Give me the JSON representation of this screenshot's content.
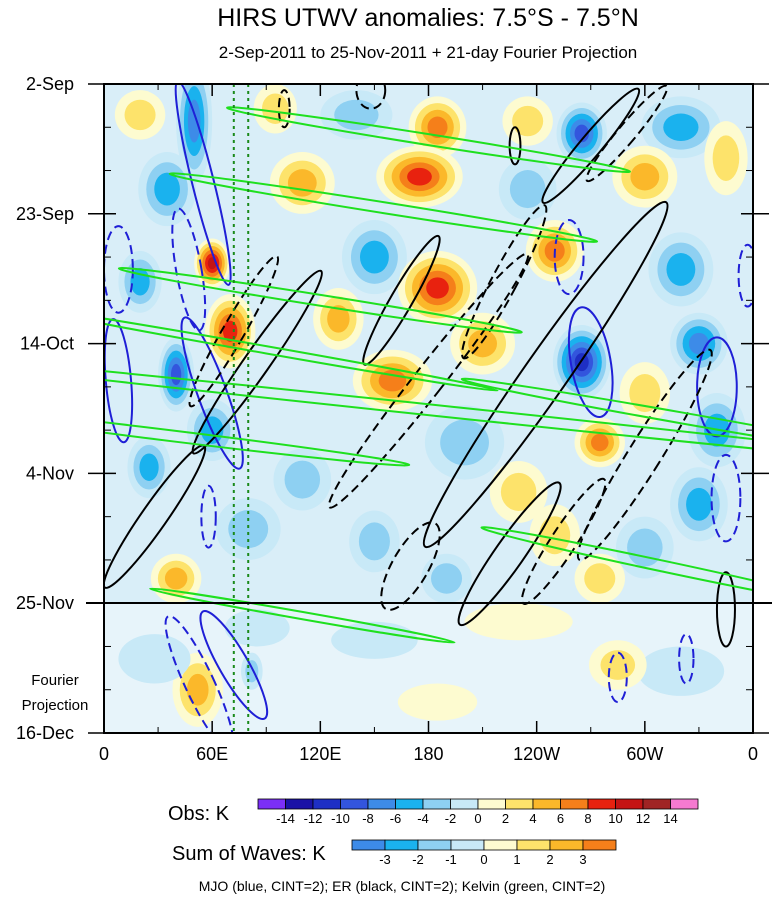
{
  "chart_data": {
    "type": "heatmap",
    "title": "HIRS UTWV anomalies: 7.5°S - 7.5°N",
    "subtitle": "2-Sep-2011 to 25-Nov-2011 + 21-day Fourier Projection",
    "x_ticks": [
      "0",
      "60E",
      "120E",
      "180",
      "120W",
      "60W",
      "0"
    ],
    "x_tick_values": [
      0,
      60,
      120,
      180,
      240,
      300,
      360
    ],
    "xlim": [
      0,
      360
    ],
    "y_ticks": [
      "2-Sep",
      "23-Sep",
      "14-Oct",
      "4-Nov",
      "25-Nov",
      "16-Dec"
    ],
    "y_tick_values": [
      0,
      21,
      42,
      63,
      84,
      105
    ],
    "ylim": [
      0,
      105
    ],
    "y_annotation": [
      "Fourier",
      "Projection"
    ],
    "projection_start_day": 84,
    "reference_lines_x": [
      72,
      80
    ],
    "obs_legend": {
      "label": "Obs: K",
      "levels": [
        "-14",
        "-12",
        "-10",
        "-8",
        "-6",
        "-4",
        "-2",
        "0",
        "2",
        "4",
        "6",
        "8",
        "10",
        "12",
        "14"
      ],
      "colors": [
        "#7b2ff7",
        "#1a12a6",
        "#1e2fc4",
        "#3355dd",
        "#3d8be8",
        "#1ab2ee",
        "#8ed0f2",
        "#c8e9f7",
        "#fdfbd0",
        "#fde36b",
        "#fbb82a",
        "#f57f1a",
        "#e8220f",
        "#c41414",
        "#a02424",
        "#f57ad0"
      ]
    },
    "waves_legend": {
      "label": "Sum of Waves: K",
      "levels": [
        "-3",
        "-2",
        "-1",
        "0",
        "1",
        "2",
        "3"
      ],
      "colors": [
        "#3d8be8",
        "#1ab2ee",
        "#8ed0f2",
        "#c8e9f7",
        "#fdfbd0",
        "#fde36b",
        "#fbb82a",
        "#f57f1a"
      ]
    },
    "footer": "MJO (blue, CINT=2); ER (black, CINT=2); Kelvin (green, CINT=2)",
    "series": [
      {
        "name": "MJO",
        "color": "#1f1fd6"
      },
      {
        "name": "ER",
        "color": "#000000"
      },
      {
        "name": "Kelvin",
        "color": "#1fe01f"
      }
    ],
    "obs_blobs": [
      {
        "lon": 20,
        "day": 5,
        "rx": 14,
        "ry": 4,
        "v": 4
      },
      {
        "lon": 50,
        "day": 6,
        "rx": 10,
        "ry": 10,
        "v": -8
      },
      {
        "lon": 95,
        "day": 4,
        "rx": 12,
        "ry": 4,
        "v": 4
      },
      {
        "lon": 140,
        "day": 5,
        "rx": 20,
        "ry": 4,
        "v": -4
      },
      {
        "lon": 185,
        "day": 7,
        "rx": 16,
        "ry": 5,
        "v": 8
      },
      {
        "lon": 235,
        "day": 6,
        "rx": 14,
        "ry": 4,
        "v": 4
      },
      {
        "lon": 265,
        "day": 8,
        "rx": 14,
        "ry": 5,
        "v": -10
      },
      {
        "lon": 320,
        "day": 7,
        "rx": 22,
        "ry": 5,
        "v": -6
      },
      {
        "lon": 345,
        "day": 12,
        "rx": 12,
        "ry": 6,
        "v": 4
      },
      {
        "lon": 35,
        "day": 17,
        "rx": 16,
        "ry": 6,
        "v": -6
      },
      {
        "lon": 110,
        "day": 16,
        "rx": 18,
        "ry": 5,
        "v": 6
      },
      {
        "lon": 175,
        "day": 15,
        "rx": 24,
        "ry": 5,
        "v": 10
      },
      {
        "lon": 235,
        "day": 17,
        "rx": 16,
        "ry": 5,
        "v": -4
      },
      {
        "lon": 300,
        "day": 15,
        "rx": 18,
        "ry": 5,
        "v": 6
      },
      {
        "lon": 60,
        "day": 29,
        "rx": 10,
        "ry": 4,
        "v": 12
      },
      {
        "lon": 150,
        "day": 28,
        "rx": 18,
        "ry": 6,
        "v": -6
      },
      {
        "lon": 185,
        "day": 33,
        "rx": 22,
        "ry": 6,
        "v": 10
      },
      {
        "lon": 250,
        "day": 27,
        "rx": 16,
        "ry": 5,
        "v": 8
      },
      {
        "lon": 320,
        "day": 30,
        "rx": 18,
        "ry": 6,
        "v": -6
      },
      {
        "lon": 20,
        "day": 32,
        "rx": 12,
        "ry": 5,
        "v": -6
      },
      {
        "lon": 70,
        "day": 40,
        "rx": 14,
        "ry": 6,
        "v": 10
      },
      {
        "lon": 130,
        "day": 38,
        "rx": 14,
        "ry": 5,
        "v": 6
      },
      {
        "lon": 210,
        "day": 42,
        "rx": 18,
        "ry": 5,
        "v": 6
      },
      {
        "lon": 265,
        "day": 45,
        "rx": 16,
        "ry": 6,
        "v": -12
      },
      {
        "lon": 330,
        "day": 42,
        "rx": 16,
        "ry": 5,
        "v": -8
      },
      {
        "lon": 40,
        "day": 47,
        "rx": 10,
        "ry": 6,
        "v": -10
      },
      {
        "lon": 160,
        "day": 48,
        "rx": 22,
        "ry": 5,
        "v": 8
      },
      {
        "lon": 300,
        "day": 50,
        "rx": 14,
        "ry": 5,
        "v": 4
      },
      {
        "lon": 60,
        "day": 56,
        "rx": 14,
        "ry": 5,
        "v": -6
      },
      {
        "lon": 200,
        "day": 58,
        "rx": 22,
        "ry": 6,
        "v": -4
      },
      {
        "lon": 275,
        "day": 58,
        "rx": 14,
        "ry": 4,
        "v": 8
      },
      {
        "lon": 340,
        "day": 56,
        "rx": 16,
        "ry": 6,
        "v": -6
      },
      {
        "lon": 25,
        "day": 62,
        "rx": 12,
        "ry": 5,
        "v": -6
      },
      {
        "lon": 110,
        "day": 64,
        "rx": 16,
        "ry": 5,
        "v": -4
      },
      {
        "lon": 230,
        "day": 66,
        "rx": 16,
        "ry": 5,
        "v": 4
      },
      {
        "lon": 330,
        "day": 68,
        "rx": 16,
        "ry": 6,
        "v": -6
      },
      {
        "lon": 80,
        "day": 72,
        "rx": 18,
        "ry": 5,
        "v": -4
      },
      {
        "lon": 150,
        "day": 74,
        "rx": 14,
        "ry": 5,
        "v": -4
      },
      {
        "lon": 250,
        "day": 73,
        "rx": 14,
        "ry": 5,
        "v": 4
      },
      {
        "lon": 300,
        "day": 75,
        "rx": 16,
        "ry": 5,
        "v": -4
      },
      {
        "lon": 40,
        "day": 80,
        "rx": 14,
        "ry": 4,
        "v": 6
      },
      {
        "lon": 190,
        "day": 80,
        "rx": 14,
        "ry": 4,
        "v": -4
      },
      {
        "lon": 275,
        "day": 80,
        "rx": 14,
        "ry": 4,
        "v": 4
      }
    ],
    "projection_blobs": [
      {
        "lon": 52,
        "day": 98,
        "rx": 14,
        "ry": 6,
        "v": 3
      },
      {
        "lon": 28,
        "day": 93,
        "rx": 20,
        "ry": 4,
        "v": -1
      },
      {
        "lon": 85,
        "day": 88,
        "rx": 18,
        "ry": 3,
        "v": -1
      },
      {
        "lon": 82,
        "day": 95,
        "rx": 6,
        "ry": 3,
        "v": -2
      },
      {
        "lon": 320,
        "day": 95,
        "rx": 24,
        "ry": 4,
        "v": -1
      },
      {
        "lon": 230,
        "day": 87,
        "rx": 30,
        "ry": 3,
        "v": 1
      },
      {
        "lon": 285,
        "day": 94,
        "rx": 16,
        "ry": 4,
        "v": 2
      },
      {
        "lon": 150,
        "day": 90,
        "rx": 24,
        "ry": 3,
        "v": -1
      },
      {
        "lon": 185,
        "day": 100,
        "rx": 22,
        "ry": 3,
        "v": 1
      }
    ],
    "mjo_contours": [
      {
        "lon": 55,
        "day": 16,
        "rx": 6,
        "ry": 17,
        "rot": -14,
        "dash": false
      },
      {
        "lon": 47,
        "day": 30,
        "rx": 7,
        "ry": 10,
        "rot": -10,
        "dash": true
      },
      {
        "lon": 60,
        "day": 50,
        "rx": 8,
        "ry": 13,
        "rot": -20,
        "dash": false
      },
      {
        "lon": 8,
        "day": 48,
        "rx": 7,
        "ry": 10,
        "rot": -5,
        "dash": false
      },
      {
        "lon": 8,
        "day": 30,
        "rx": 8,
        "ry": 7,
        "rot": 0,
        "dash": true
      },
      {
        "lon": 270,
        "day": 45,
        "rx": 11,
        "ry": 9,
        "rot": -10,
        "dash": false
      },
      {
        "lon": 258,
        "day": 28,
        "rx": 8,
        "ry": 6,
        "rot": 0,
        "dash": true
      },
      {
        "lon": 340,
        "day": 49,
        "rx": 11,
        "ry": 8,
        "rot": 0,
        "dash": false
      },
      {
        "lon": 345,
        "day": 67,
        "rx": 8,
        "ry": 7,
        "rot": 0,
        "dash": true
      },
      {
        "lon": 357,
        "day": 31,
        "rx": 5,
        "ry": 5,
        "rot": 0,
        "dash": true
      },
      {
        "lon": 72,
        "day": 94,
        "rx": 8,
        "ry": 10,
        "rot": -30,
        "dash": false
      },
      {
        "lon": 53,
        "day": 97,
        "rx": 8,
        "ry": 12,
        "rot": -25,
        "dash": true
      },
      {
        "lon": 285,
        "day": 96,
        "rx": 5,
        "ry": 4,
        "rot": 0,
        "dash": true
      },
      {
        "lon": 323,
        "day": 93,
        "rx": 4,
        "ry": 4,
        "rot": 0,
        "dash": true
      },
      {
        "lon": 58,
        "day": 70,
        "rx": 4,
        "ry": 5,
        "rot": 0,
        "dash": true
      }
    ],
    "er_contours": [
      {
        "lon": 245,
        "day": 47,
        "rx": 12,
        "ry": 34,
        "rot": 35,
        "dash": false
      },
      {
        "lon": 180,
        "day": 48,
        "rx": 8,
        "ry": 26,
        "rot": 38,
        "dash": true
      },
      {
        "lon": 165,
        "day": 35,
        "rx": 6,
        "ry": 12,
        "rot": 30,
        "dash": false
      },
      {
        "lon": 222,
        "day": 32,
        "rx": 7,
        "ry": 14,
        "rot": 28,
        "dash": true
      },
      {
        "lon": 270,
        "day": 10,
        "rx": 6,
        "ry": 12,
        "rot": 40,
        "dash": false
      },
      {
        "lon": 290,
        "day": 8,
        "rx": 5,
        "ry": 10,
        "rot": 40,
        "dash": true
      },
      {
        "lon": 85,
        "day": 45,
        "rx": 7,
        "ry": 18,
        "rot": 35,
        "dash": false
      },
      {
        "lon": 72,
        "day": 40,
        "rx": 6,
        "ry": 14,
        "rot": 30,
        "dash": true
      },
      {
        "lon": 28,
        "day": 70,
        "rx": 7,
        "ry": 14,
        "rot": 35,
        "dash": false
      },
      {
        "lon": 225,
        "day": 76,
        "rx": 8,
        "ry": 14,
        "rot": 35,
        "dash": false
      },
      {
        "lon": 255,
        "day": 74,
        "rx": 7,
        "ry": 12,
        "rot": 33,
        "dash": true
      },
      {
        "lon": 300,
        "day": 60,
        "rx": 9,
        "ry": 20,
        "rot": 32,
        "dash": true
      },
      {
        "lon": 345,
        "day": 85,
        "rx": 5,
        "ry": 6,
        "rot": 0,
        "dash": false
      },
      {
        "lon": 228,
        "day": 10,
        "rx": 3,
        "ry": 3,
        "rot": 0,
        "dash": false
      },
      {
        "lon": 148,
        "day": 1,
        "rx": 8,
        "ry": 3,
        "rot": 0,
        "dash": true
      },
      {
        "lon": 100,
        "day": 4,
        "rx": 3,
        "ry": 3,
        "rot": 0,
        "dash": true
      },
      {
        "lon": 170,
        "day": 78,
        "rx": 10,
        "ry": 8,
        "rot": 30,
        "dash": true
      }
    ],
    "kelvin_contours": [
      {
        "lon": 155,
        "day": 20,
        "rx": 3,
        "ry": 35,
        "rot": -81,
        "dash": false
      },
      {
        "lon": 180,
        "day": 9,
        "rx": 3,
        "ry": 33,
        "rot": -81,
        "dash": false
      },
      {
        "lon": 120,
        "day": 35,
        "rx": 3,
        "ry": 33,
        "rot": -81,
        "dash": false
      },
      {
        "lon": 190,
        "day": 53,
        "rx": 3,
        "ry": 95,
        "rot": -84,
        "dash": false
      },
      {
        "lon": 90,
        "day": 43,
        "rx": 2,
        "ry": 38,
        "rot": -80,
        "dash": false
      },
      {
        "lon": 40,
        "day": 57,
        "rx": 3,
        "ry": 38,
        "rot": -83,
        "dash": false
      },
      {
        "lon": 320,
        "day": 54,
        "rx": 3,
        "ry": 36,
        "rot": -80,
        "dash": false
      },
      {
        "lon": 310,
        "day": 78,
        "rx": 3,
        "ry": 30,
        "rot": -78,
        "dash": false
      },
      {
        "lon": 110,
        "day": 86,
        "rx": 2,
        "ry": 25,
        "rot": -80,
        "dash": false
      }
    ]
  }
}
